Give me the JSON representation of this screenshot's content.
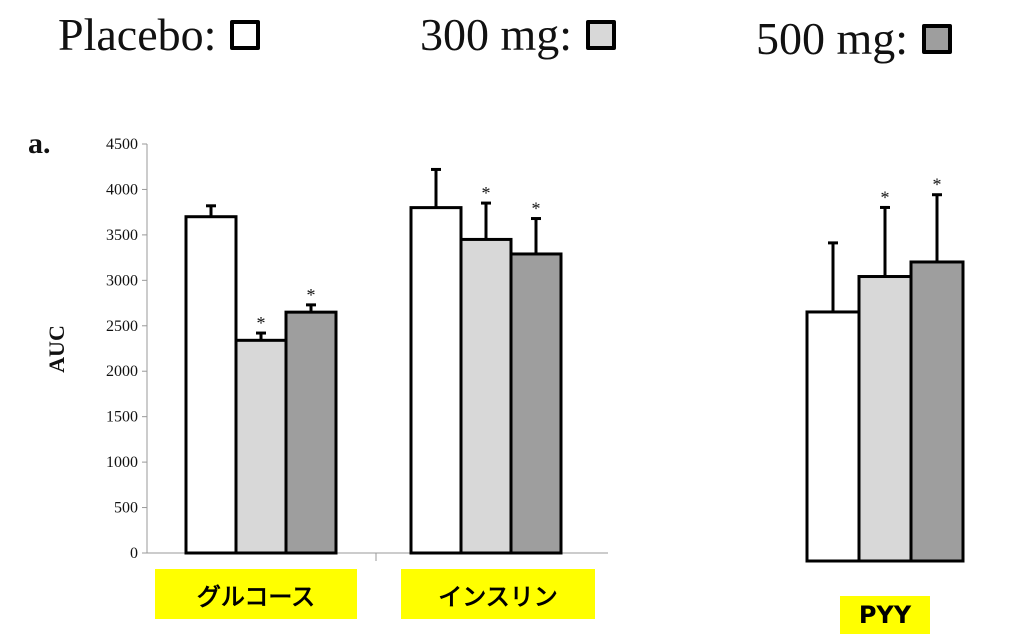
{
  "legend": [
    {
      "label": "Placebo:",
      "color": "#ffffff"
    },
    {
      "label": "300 mg:",
      "color": "#d8d8d8"
    },
    {
      "label": "500 mg:",
      "color": "#9e9e9e"
    }
  ],
  "panel_letter": "a.",
  "chart_data": {
    "type": "bar",
    "title": "",
    "ylabel": "AUC",
    "ylim": [
      0,
      4500
    ],
    "yticks": [
      0,
      500,
      1000,
      1500,
      2000,
      2500,
      3000,
      3500,
      4000,
      4500
    ],
    "series_colors": [
      "#ffffff",
      "#d8d8d8",
      "#9e9e9e"
    ],
    "groups": [
      {
        "label": "グルコース",
        "values": [
          3700,
          2340,
          2650
        ],
        "errors": [
          120,
          80,
          80
        ],
        "significant": [
          false,
          true,
          true
        ]
      },
      {
        "label": "インスリン",
        "values": [
          3800,
          3450,
          3290
        ],
        "errors": [
          420,
          400,
          390
        ],
        "significant": [
          false,
          true,
          true
        ]
      },
      {
        "label": "PYY",
        "values": [
          2740,
          3130,
          3290
        ],
        "errors": [
          760,
          760,
          740
        ],
        "significant": [
          false,
          true,
          true
        ]
      }
    ],
    "significance_marker": "*"
  }
}
